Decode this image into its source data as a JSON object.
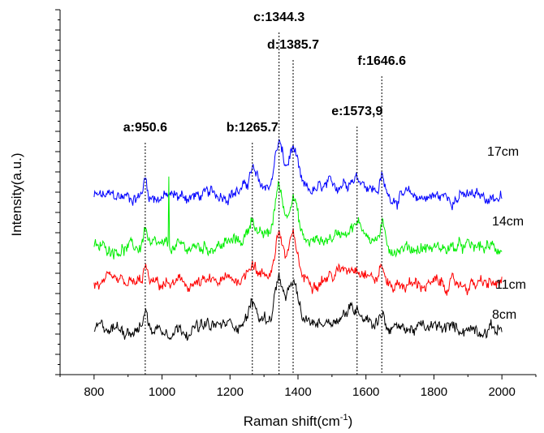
{
  "chart_data": {
    "type": "line",
    "xlabel": "Raman shift(cm",
    "xlabel_sup": "-1",
    "xlabel_close": ")",
    "ylabel": "Intensity(a.u.)",
    "xlim": [
      700,
      2100
    ],
    "x_ticks": [
      800,
      1000,
      1200,
      1400,
      1600,
      1800,
      2000
    ],
    "grid": false,
    "peaks": [
      {
        "label": "a:950.6",
        "x": 950.6
      },
      {
        "label": "b:1265.7",
        "x": 1265.7
      },
      {
        "label": "c:1344.3",
        "x": 1344.3
      },
      {
        "label": "d:1385.7",
        "x": 1385.7
      },
      {
        "label": "e:1573,9",
        "x": 1573.9
      },
      {
        "label": "f:1646.6",
        "x": 1646.6
      }
    ],
    "series": [
      {
        "name": "17cm",
        "color": "#0000ff",
        "baseline": 0.9,
        "scale": 1.0,
        "spike": false
      },
      {
        "name": "14cm",
        "color": "#00ee00",
        "baseline": 0.55,
        "scale": 1.15,
        "spike": true
      },
      {
        "name": "11cm",
        "color": "#ff0000",
        "baseline": 0.3,
        "scale": 0.95,
        "spike": false
      },
      {
        "name": "8cm",
        "color": "#000000",
        "baseline": 0.0,
        "scale": 0.95,
        "spike": false
      }
    ]
  }
}
